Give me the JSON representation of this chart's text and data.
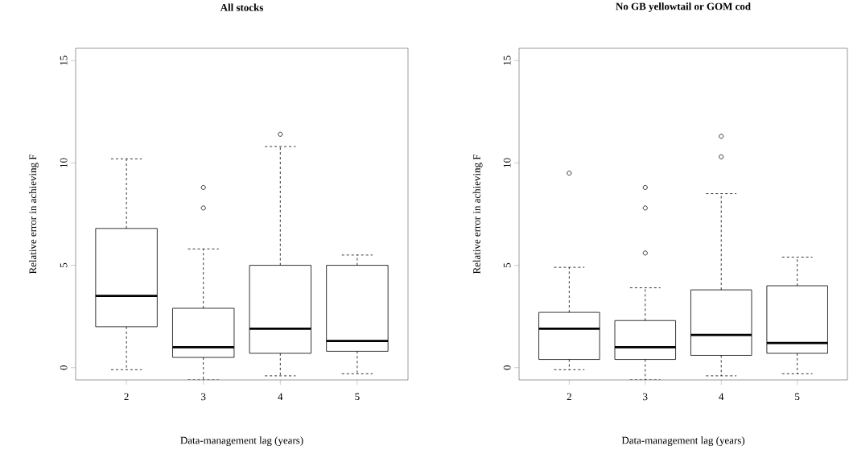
{
  "chart_data": [
    {
      "type": "box",
      "title": "All stocks",
      "xlabel": "Data-management lag (years)",
      "ylabel": "Relative error in achieving F",
      "categories": [
        "2",
        "3",
        "4",
        "5"
      ],
      "ylim": [
        -0.6,
        15.6
      ],
      "yticks": [
        0,
        5,
        10,
        15
      ],
      "boxes": [
        {
          "low": -0.1,
          "q1": 2.0,
          "median": 3.5,
          "q3": 6.8,
          "high": 10.2
        },
        {
          "low": -0.6,
          "q1": 0.5,
          "median": 1.0,
          "q3": 2.9,
          "high": 5.8,
          "outliers": [
            7.8,
            8.8
          ]
        },
        {
          "low": -0.4,
          "q1": 0.7,
          "median": 1.9,
          "q3": 5.0,
          "high": 10.8,
          "outliers": [
            11.4
          ]
        },
        {
          "low": -0.3,
          "q1": 0.8,
          "median": 1.3,
          "q3": 5.0,
          "high": 5.5
        }
      ]
    },
    {
      "type": "box",
      "title": "No GB yellowtail or GOM cod",
      "xlabel": "Data-management lag (years)",
      "ylabel": "Relative error in achieving F",
      "categories": [
        "2",
        "3",
        "4",
        "5"
      ],
      "ylim": [
        -0.6,
        15.6
      ],
      "yticks": [
        0,
        5,
        10,
        15
      ],
      "boxes": [
        {
          "low": -0.1,
          "q1": 0.4,
          "median": 1.9,
          "q3": 2.7,
          "high": 4.9,
          "outliers": [
            9.5
          ]
        },
        {
          "low": -0.6,
          "q1": 0.4,
          "median": 1.0,
          "q3": 2.3,
          "high": 3.9,
          "outliers": [
            5.6,
            7.8,
            8.8
          ]
        },
        {
          "low": -0.4,
          "q1": 0.6,
          "median": 1.6,
          "q3": 3.8,
          "high": 8.5,
          "outliers": [
            10.3,
            11.3
          ]
        },
        {
          "low": -0.3,
          "q1": 0.7,
          "median": 1.2,
          "q3": 4.0,
          "high": 5.4
        }
      ]
    }
  ]
}
